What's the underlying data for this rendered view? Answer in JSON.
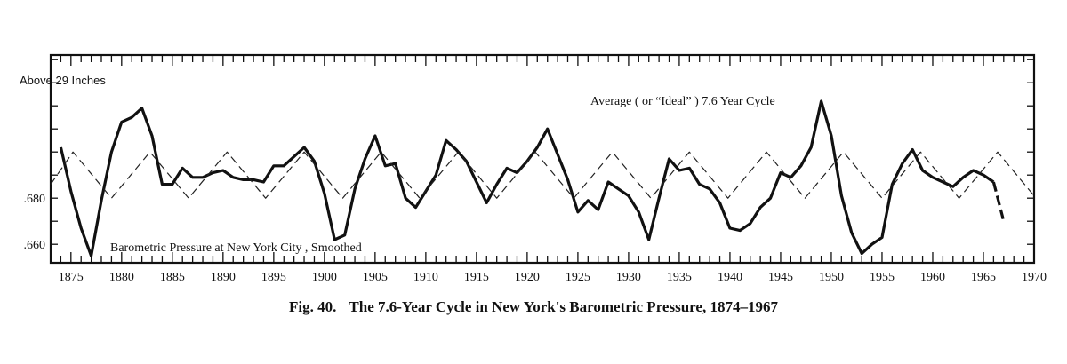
{
  "chart_data": {
    "type": "line",
    "title": "The 7.6-Year Cycle in New York's Barometric Pressure, 1874–1967",
    "figure_label": "Fig. 40.",
    "xlabel": "",
    "ylabel": "Above 29 Inches",
    "xlim": [
      1873,
      1970
    ],
    "ylim": [
      0.652,
      0.742
    ],
    "x_ticks": [
      1875,
      1880,
      1885,
      1890,
      1895,
      1900,
      1905,
      1910,
      1915,
      1920,
      1925,
      1930,
      1935,
      1940,
      1945,
      1950,
      1955,
      1960,
      1965,
      1970
    ],
    "x_tick_labels": [
      "1875",
      "1880",
      "1885",
      "1890",
      "1895",
      "1900",
      "1905",
      "1910",
      "1915",
      "1920",
      "1925",
      "1930",
      "1935",
      "1940",
      "1945",
      "1950",
      "1955",
      "1960",
      "1965",
      "1970"
    ],
    "y_ticks": [
      0.66,
      0.68
    ],
    "y_tick_labels": [
      ".660",
      ".680"
    ],
    "grid": false,
    "series": [
      {
        "name": "Barometric Pressure at New York City , Smoothed",
        "style": "solid",
        "x": [
          1874,
          1875,
          1876,
          1877,
          1878,
          1879,
          1880,
          1881,
          1882,
          1883,
          1884,
          1885,
          1886,
          1887,
          1888,
          1889,
          1890,
          1891,
          1892,
          1893,
          1894,
          1895,
          1896,
          1897,
          1898,
          1899,
          1900,
          1901,
          1902,
          1903,
          1904,
          1905,
          1906,
          1907,
          1908,
          1909,
          1910,
          1911,
          1912,
          1913,
          1914,
          1915,
          1916,
          1917,
          1918,
          1919,
          1920,
          1921,
          1922,
          1923,
          1924,
          1925,
          1926,
          1927,
          1928,
          1929,
          1930,
          1931,
          1932,
          1933,
          1934,
          1935,
          1936,
          1937,
          1938,
          1939,
          1940,
          1941,
          1942,
          1943,
          1944,
          1945,
          1946,
          1947,
          1948,
          1949,
          1950,
          1951,
          1952,
          1953,
          1954,
          1955,
          1956,
          1957,
          1958,
          1959,
          1960,
          1961,
          1962,
          1963,
          1964,
          1965,
          1966
        ],
        "values": [
          0.702,
          0.683,
          0.667,
          0.655,
          0.679,
          0.7,
          0.713,
          0.715,
          0.719,
          0.707,
          0.686,
          0.686,
          0.693,
          0.689,
          0.689,
          0.691,
          0.692,
          0.689,
          0.688,
          0.688,
          0.687,
          0.694,
          0.694,
          0.698,
          0.702,
          0.696,
          0.682,
          0.662,
          0.664,
          0.684,
          0.697,
          0.707,
          0.694,
          0.695,
          0.68,
          0.676,
          0.683,
          0.69,
          0.705,
          0.701,
          0.696,
          0.687,
          0.678,
          0.686,
          0.693,
          0.691,
          0.696,
          0.702,
          0.71,
          0.699,
          0.688,
          0.674,
          0.679,
          0.675,
          0.687,
          0.684,
          0.681,
          0.674,
          0.662,
          0.68,
          0.697,
          0.692,
          0.693,
          0.686,
          0.684,
          0.678,
          0.667,
          0.666,
          0.669,
          0.676,
          0.68,
          0.691,
          0.689,
          0.694,
          0.702,
          0.722,
          0.707,
          0.681,
          0.665,
          0.656,
          0.66,
          0.663,
          0.686,
          0.695,
          0.701,
          0.692,
          0.689,
          0.687,
          0.685,
          0.689,
          0.692,
          0.69,
          0.687
        ]
      },
      {
        "name": "Barometric Pressure at New York City , Smoothed (extrapolated)",
        "style": "long-dash",
        "x": [
          1966,
          1967
        ],
        "values": [
          0.687,
          0.67
        ]
      },
      {
        "name": "Average ( or “Ideal” ) 7.6 Year Cycle",
        "style": "dashed",
        "x": [
          1873,
          1875.2,
          1879,
          1882.8,
          1886.6,
          1890.4,
          1894.2,
          1898,
          1901.8,
          1905.6,
          1909.4,
          1913.2,
          1917,
          1920.8,
          1924.6,
          1928.4,
          1932.2,
          1936,
          1939.8,
          1943.6,
          1947.4,
          1951.2,
          1955,
          1958.8,
          1962.6,
          1966.4,
          1970
        ],
        "values": [
          0.686,
          0.7,
          0.68,
          0.7,
          0.68,
          0.7,
          0.68,
          0.7,
          0.68,
          0.7,
          0.68,
          0.7,
          0.68,
          0.7,
          0.68,
          0.7,
          0.68,
          0.7,
          0.68,
          0.7,
          0.68,
          0.7,
          0.68,
          0.7,
          0.68,
          0.7,
          0.681
        ]
      }
    ],
    "annotations": [
      {
        "text": "Above 29 Inches",
        "target": "y-axis-top"
      },
      {
        "text": "Average ( or “Ideal” ) 7.6 Year Cycle",
        "target": "dashed-series"
      },
      {
        "text": "Barometric Pressure at New York City , Smoothed",
        "target": "solid-series"
      }
    ]
  }
}
